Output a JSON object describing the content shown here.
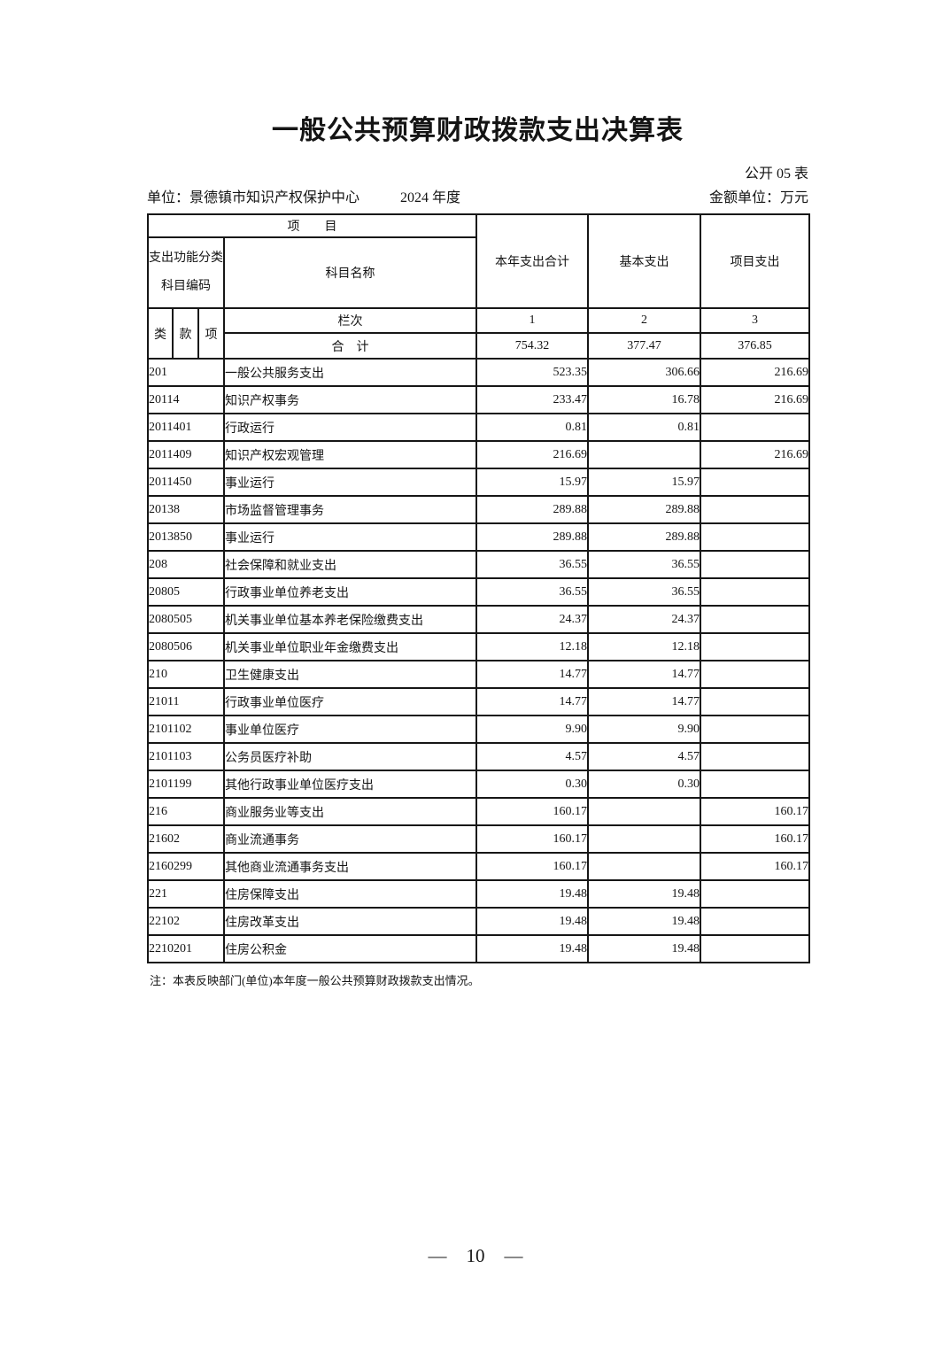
{
  "page": {
    "title": "一般公共预算财政拨款支出决算表",
    "form_code": "公开 05 表",
    "unit_label": "单位：景德镇市知识产权保护中心",
    "year_label": "2024 年度",
    "amount_unit_label": "金额单位：万元",
    "note": "注：本表反映部门(单位)本年度一般公共预算财政拨款支出情况。",
    "page_number": "10",
    "page_number_dash": "—"
  },
  "table": {
    "header": {
      "project": "项　　目",
      "code_label_line1": "支出功能分类",
      "code_label_line2": "科目编码",
      "subject_name": "科目名称",
      "col_total": "本年支出合计",
      "col_basic": "基本支出",
      "col_project": "项目支出",
      "class": "类",
      "section": "款",
      "item": "项",
      "column_row_label": "栏次",
      "col_no_1": "1",
      "col_no_2": "2",
      "col_no_3": "3"
    },
    "total_row": {
      "label": "合　计",
      "total": "754.32",
      "basic": "377.47",
      "project": "376.85"
    },
    "rows": [
      {
        "code": "201",
        "name": "一般公共服务支出",
        "total": "523.35",
        "basic": "306.66",
        "project": "216.69"
      },
      {
        "code": "20114",
        "name": "知识产权事务",
        "total": "233.47",
        "basic": "16.78",
        "project": "216.69"
      },
      {
        "code": "2011401",
        "name": "行政运行",
        "total": "0.81",
        "basic": "0.81",
        "project": ""
      },
      {
        "code": "2011409",
        "name": "知识产权宏观管理",
        "total": "216.69",
        "basic": "",
        "project": "216.69"
      },
      {
        "code": "2011450",
        "name": "事业运行",
        "total": "15.97",
        "basic": "15.97",
        "project": ""
      },
      {
        "code": "20138",
        "name": "市场监督管理事务",
        "total": "289.88",
        "basic": "289.88",
        "project": ""
      },
      {
        "code": "2013850",
        "name": "事业运行",
        "total": "289.88",
        "basic": "289.88",
        "project": ""
      },
      {
        "code": "208",
        "name": "社会保障和就业支出",
        "total": "36.55",
        "basic": "36.55",
        "project": ""
      },
      {
        "code": "20805",
        "name": "行政事业单位养老支出",
        "total": "36.55",
        "basic": "36.55",
        "project": ""
      },
      {
        "code": "2080505",
        "name": "机关事业单位基本养老保险缴费支出",
        "total": "24.37",
        "basic": "24.37",
        "project": ""
      },
      {
        "code": "2080506",
        "name": "机关事业单位职业年金缴费支出",
        "total": "12.18",
        "basic": "12.18",
        "project": ""
      },
      {
        "code": "210",
        "name": "卫生健康支出",
        "total": "14.77",
        "basic": "14.77",
        "project": ""
      },
      {
        "code": "21011",
        "name": "行政事业单位医疗",
        "total": "14.77",
        "basic": "14.77",
        "project": ""
      },
      {
        "code": "2101102",
        "name": "事业单位医疗",
        "total": "9.90",
        "basic": "9.90",
        "project": ""
      },
      {
        "code": "2101103",
        "name": "公务员医疗补助",
        "total": "4.57",
        "basic": "4.57",
        "project": ""
      },
      {
        "code": "2101199",
        "name": "其他行政事业单位医疗支出",
        "total": "0.30",
        "basic": "0.30",
        "project": ""
      },
      {
        "code": "216",
        "name": "商业服务业等支出",
        "total": "160.17",
        "basic": "",
        "project": "160.17"
      },
      {
        "code": "21602",
        "name": "商业流通事务",
        "total": "160.17",
        "basic": "",
        "project": "160.17"
      },
      {
        "code": "2160299",
        "name": "其他商业流通事务支出",
        "total": "160.17",
        "basic": "",
        "project": "160.17"
      },
      {
        "code": "221",
        "name": "住房保障支出",
        "total": "19.48",
        "basic": "19.48",
        "project": ""
      },
      {
        "code": "22102",
        "name": "住房改革支出",
        "total": "19.48",
        "basic": "19.48",
        "project": ""
      },
      {
        "code": "2210201",
        "name": "住房公积金",
        "total": "19.48",
        "basic": "19.48",
        "project": ""
      }
    ]
  }
}
